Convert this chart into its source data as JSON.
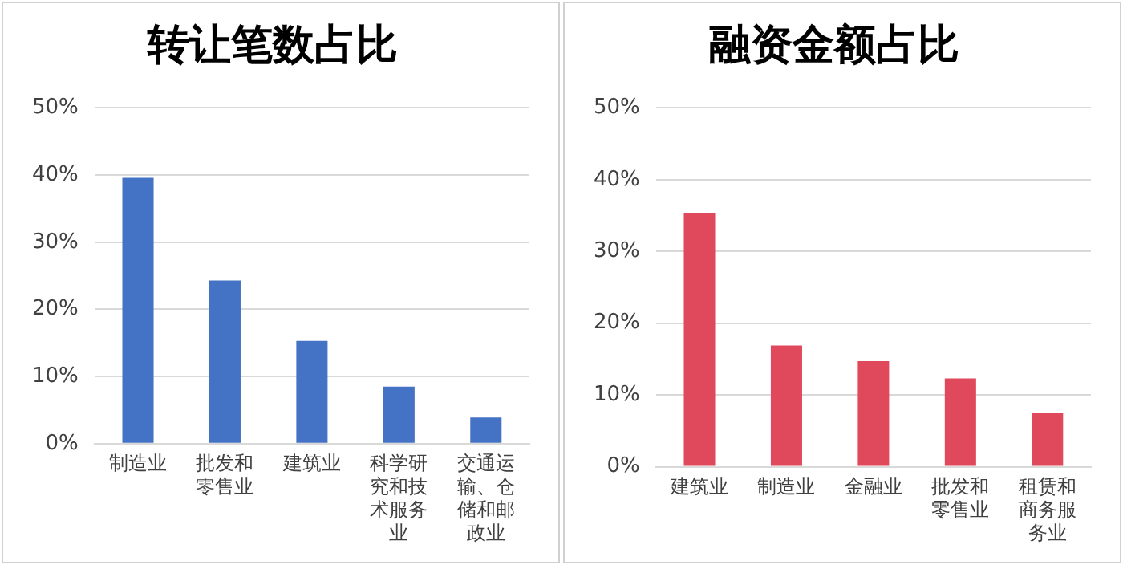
{
  "chart_data": [
    {
      "type": "bar",
      "title": "转让笔数占比",
      "categories": [
        "制造业",
        "批发和零售业",
        "建筑业",
        "科学研究和技术服务业",
        "交通运输、仓储和邮政业"
      ],
      "values": [
        39.6,
        24.3,
        15.3,
        8.5,
        3.9
      ],
      "color": "#4472c4",
      "ylim": [
        0,
        50
      ],
      "yticks": [
        {
          "value": 0,
          "label": "0%"
        },
        {
          "value": 10,
          "label": "10%"
        },
        {
          "value": 20,
          "label": "20%"
        },
        {
          "value": 30,
          "label": "30%"
        },
        {
          "value": 40,
          "label": "40%"
        },
        {
          "value": 50,
          "label": "50%"
        }
      ],
      "grid": "y",
      "legend": false
    },
    {
      "type": "bar",
      "title": "融资金额占比",
      "categories": [
        "建筑业",
        "制造业",
        "金融业",
        "批发和零售业",
        "租赁和商务服务业"
      ],
      "values": [
        35.3,
        16.9,
        14.7,
        12.3,
        7.5
      ],
      "color": "#e0485c",
      "ylim": [
        0,
        50
      ],
      "yticks": [
        {
          "value": 0,
          "label": "0%"
        },
        {
          "value": 10,
          "label": "10%"
        },
        {
          "value": 20,
          "label": "20%"
        },
        {
          "value": 30,
          "label": "30%"
        },
        {
          "value": 40,
          "label": "40%"
        },
        {
          "value": 50,
          "label": "50%"
        }
      ],
      "grid": "y",
      "legend": false
    }
  ]
}
